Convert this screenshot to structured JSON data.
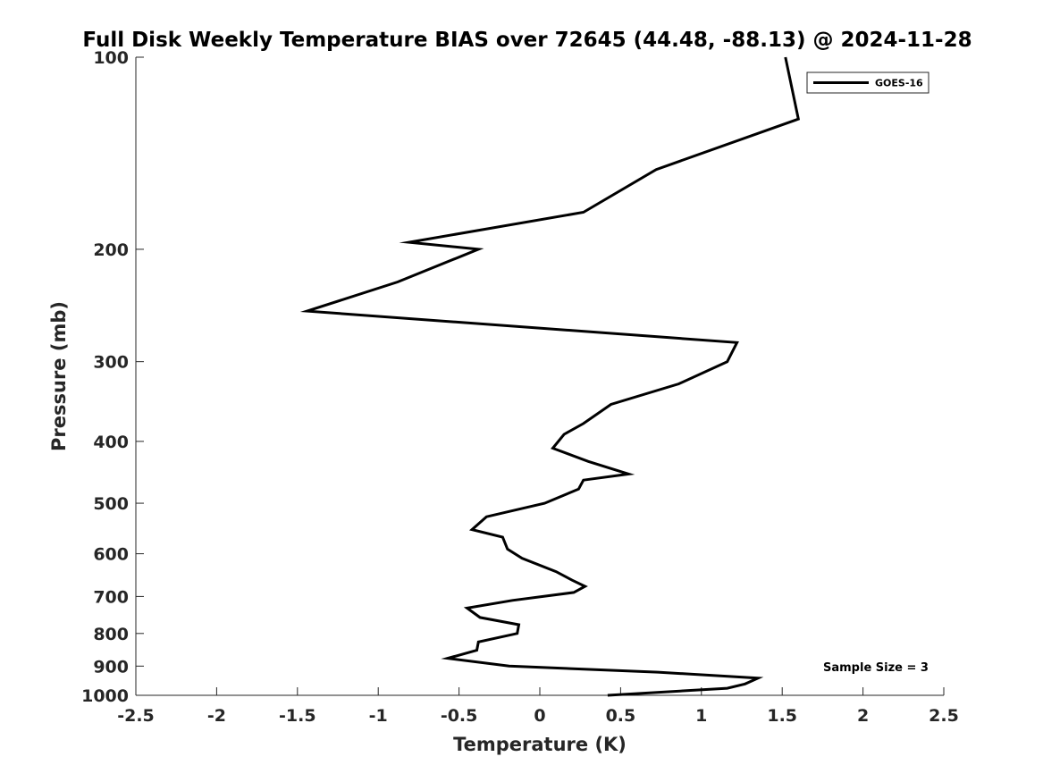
{
  "chart_data": {
    "type": "line",
    "title": "Full Disk Weekly Temperature BIAS over 72645 (44.48, -88.13) @ 2024-11-28",
    "xlabel": "Temperature (K)",
    "ylabel": "Pressure (mb)",
    "xlim": [
      -2.5,
      2.5
    ],
    "ylim": [
      100,
      1000
    ],
    "yscale": "log",
    "y_reversed": true,
    "x_ticks": [
      -2.5,
      -2,
      -1.5,
      -1,
      -0.5,
      0,
      0.5,
      1,
      1.5,
      2,
      2.5
    ],
    "x_tick_labels": [
      "-2.5",
      "-2",
      "-1.5",
      "-1",
      "-0.5",
      "0",
      "0.5",
      "1",
      "1.5",
      "2",
      "2.5"
    ],
    "y_ticks": [
      100,
      200,
      300,
      400,
      500,
      600,
      700,
      800,
      900,
      1000
    ],
    "y_tick_labels": [
      "100",
      "200",
      "300",
      "400",
      "500",
      "600",
      "700",
      "800",
      "900",
      "1000"
    ],
    "grid": false,
    "legend_position": "top-right",
    "annotation": "Sample Size = 3",
    "series": [
      {
        "name": "GOES-16",
        "color": "#000000",
        "points": [
          [
            1.52,
            100
          ],
          [
            1.6,
            125
          ],
          [
            0.72,
            150
          ],
          [
            0.27,
            175
          ],
          [
            -0.81,
            195
          ],
          [
            -0.38,
            200
          ],
          [
            -0.88,
            225
          ],
          [
            -1.44,
            250
          ],
          [
            1.22,
            280
          ],
          [
            1.16,
            300
          ],
          [
            0.86,
            325
          ],
          [
            0.44,
            350
          ],
          [
            0.27,
            375
          ],
          [
            0.15,
            390
          ],
          [
            0.08,
            410
          ],
          [
            0.3,
            430
          ],
          [
            0.55,
            450
          ],
          [
            0.27,
            460
          ],
          [
            0.24,
            475
          ],
          [
            0.03,
            500
          ],
          [
            -0.33,
            525
          ],
          [
            -0.42,
            550
          ],
          [
            -0.23,
            565
          ],
          [
            -0.2,
            590
          ],
          [
            -0.11,
            610
          ],
          [
            0.1,
            640
          ],
          [
            0.2,
            660
          ],
          [
            0.28,
            675
          ],
          [
            0.21,
            690
          ],
          [
            -0.17,
            710
          ],
          [
            -0.45,
            730
          ],
          [
            -0.37,
            755
          ],
          [
            -0.13,
            775
          ],
          [
            -0.14,
            800
          ],
          [
            -0.38,
            825
          ],
          [
            -0.39,
            850
          ],
          [
            -0.57,
            875
          ],
          [
            -0.19,
            900
          ],
          [
            0.73,
            920
          ],
          [
            1.35,
            940
          ],
          [
            1.27,
            960
          ],
          [
            1.16,
            975
          ],
          [
            0.42,
            1000
          ]
        ]
      }
    ]
  }
}
